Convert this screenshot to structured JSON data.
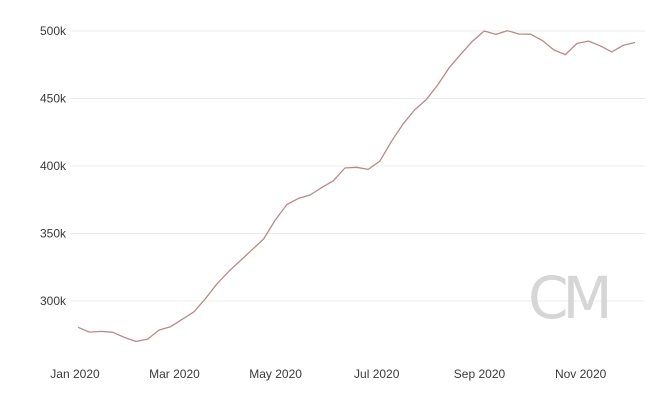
{
  "chart_data": {
    "type": "line",
    "title": "",
    "xlabel": "",
    "ylabel": "",
    "ylim": [
      265000,
      505000
    ],
    "yticks": [
      {
        "value": 300000,
        "label": "300k"
      },
      {
        "value": 350000,
        "label": "350k"
      },
      {
        "value": 400000,
        "label": "400k"
      },
      {
        "value": 450000,
        "label": "450k"
      },
      {
        "value": 500000,
        "label": "500k"
      }
    ],
    "xticks": [
      {
        "date": "2020-01-01",
        "label": "Jan 2020"
      },
      {
        "date": "2020-03-01",
        "label": "Mar 2020"
      },
      {
        "date": "2020-05-01",
        "label": "May 2020"
      },
      {
        "date": "2020-07-01",
        "label": "Jul 2020"
      },
      {
        "date": "2020-09-01",
        "label": "Sep 2020"
      },
      {
        "date": "2020-11-01",
        "label": "Nov 2020"
      }
    ],
    "xlim": [
      "2020-01-01",
      "2020-12-05"
    ],
    "grid": "horizontal",
    "line_color": "#b98a8a",
    "series": [
      {
        "x": [
          "2020-01-01",
          "2020-01-08",
          "2020-01-15",
          "2020-01-22",
          "2020-01-29",
          "2020-02-05",
          "2020-02-12",
          "2020-02-19",
          "2020-02-26",
          "2020-03-04",
          "2020-03-11",
          "2020-03-18",
          "2020-03-25",
          "2020-04-01",
          "2020-04-08",
          "2020-04-15",
          "2020-04-22",
          "2020-04-29",
          "2020-05-06",
          "2020-05-13",
          "2020-05-20",
          "2020-05-27",
          "2020-06-03",
          "2020-06-10",
          "2020-06-17",
          "2020-06-24",
          "2020-07-01",
          "2020-07-08",
          "2020-07-15",
          "2020-07-22",
          "2020-07-29",
          "2020-08-05",
          "2020-08-12",
          "2020-08-19",
          "2020-08-26",
          "2020-09-02",
          "2020-09-09",
          "2020-09-16",
          "2020-09-23",
          "2020-09-30",
          "2020-10-07",
          "2020-10-14",
          "2020-10-21",
          "2020-10-28",
          "2020-11-04",
          "2020-11-11",
          "2020-11-18",
          "2020-11-25",
          "2020-12-02"
        ],
        "values": [
          280500,
          277000,
          277500,
          276800,
          273000,
          270000,
          271800,
          278500,
          281000,
          286500,
          292000,
          302000,
          313000,
          322000,
          330000,
          338000,
          346000,
          360000,
          371500,
          376000,
          378500,
          384000,
          389000,
          398500,
          399000,
          397500,
          403500,
          418000,
          431000,
          441500,
          449000,
          460000,
          473000,
          483000,
          492500,
          500000,
          497500,
          500200,
          497800,
          497600,
          493000,
          486000,
          482500,
          490800,
          492500,
          489000,
          484500,
          489500,
          491500
        ]
      }
    ]
  }
}
